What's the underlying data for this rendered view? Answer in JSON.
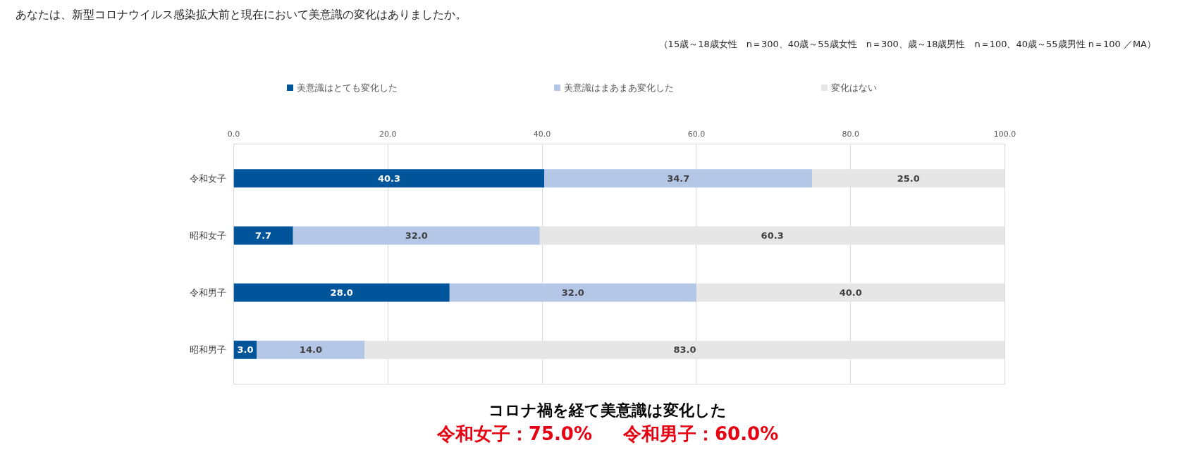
{
  "chart_data": {
    "type": "bar",
    "orientation": "horizontal",
    "stacked": true,
    "title": "あなたは、新型コロナウイルス感染拡大前と現在において美意識の変化はありましたか。",
    "subtitle": "（15歳～18歳女性　n＝300、40歳～55歳女性　n＝300、歳～18歳男性　n＝100、40歳～55歳男性 n＝100 ／MA）",
    "categories": [
      "令和女子",
      "昭和女子",
      "令和男子",
      "昭和男子"
    ],
    "series": [
      {
        "name": "美意識はとても変化した",
        "color": "#00549a",
        "values": [
          40.3,
          7.7,
          28.0,
          3.0
        ],
        "value_labels": [
          "40.3",
          "7.7",
          "28.0",
          "3.0"
        ]
      },
      {
        "name": "美意識はまあまあ変化した",
        "color": "#b4c7e7",
        "values": [
          34.7,
          32.0,
          32.0,
          14.0
        ],
        "value_labels": [
          "34.7",
          "32.0",
          "32.0",
          "14.0"
        ]
      },
      {
        "name": "変化はない",
        "color": "#e7e6e6",
        "values": [
          25.0,
          60.3,
          40.0,
          83.0
        ],
        "value_labels": [
          "25.0",
          "60.3",
          "40.0",
          "83.0"
        ]
      }
    ],
    "xlim": [
      0,
      100
    ],
    "xticks": [
      {
        "value": 0,
        "label": "0.0"
      },
      {
        "value": 20,
        "label": "20.0"
      },
      {
        "value": 40,
        "label": "40.0"
      },
      {
        "value": 60,
        "label": "60.0"
      },
      {
        "value": 80,
        "label": "80.0"
      },
      {
        "value": 100,
        "label": "100.0"
      }
    ],
    "grid": "x",
    "legend": "top",
    "annotations": [
      "コロナ禍を経て美意識は変化した",
      "令和女子：75.0%",
      "令和男子：60.0%"
    ]
  }
}
